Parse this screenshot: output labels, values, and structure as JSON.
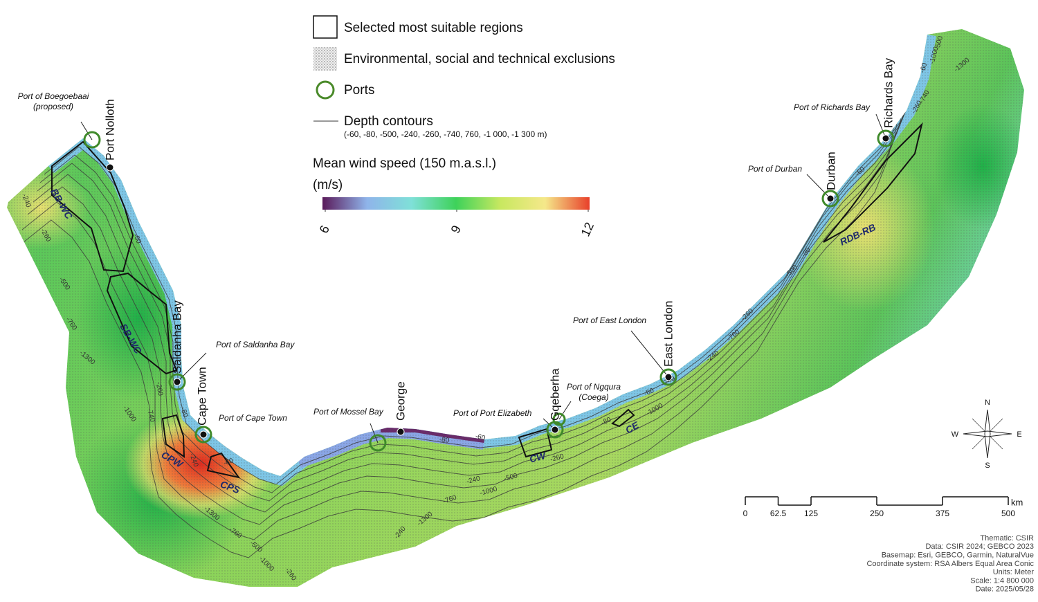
{
  "legend": {
    "regions": "Selected most suitable regions",
    "exclusions": "Environmental, social and technical exclusions",
    "ports": "Ports",
    "contours": "Depth contours",
    "contour_values": "(-60, -80, -500, -240, -260, -740, 760, -1 000, -1 300 m)",
    "wind_title": "Mean wind speed (150 m.a.s.l.)",
    "wind_unit": "(m/s)"
  },
  "colorbar": {
    "range": [
      6,
      12
    ],
    "ticks": [
      6,
      9,
      12
    ],
    "colors": [
      "#5a1a5a",
      "#8fb4ea",
      "#7fe0d8",
      "#3ed25a",
      "#c8e860",
      "#f5e88a",
      "#e8402a"
    ]
  },
  "ports": [
    [
      "Port of Boegoebaai",
      "(proposed)"
    ],
    [
      "Port of Saldanha Bay"
    ],
    [
      "Port of Cape Town"
    ],
    [
      "Port of Mossel Bay"
    ],
    [
      "Port of Port Elizabeth"
    ],
    [
      "Port of Ngqura",
      "(Coega)"
    ],
    [
      "Port of East London"
    ],
    [
      "Port of Durban"
    ],
    [
      "Port of Richards Bay"
    ]
  ],
  "towns": [
    "Port Nolloth",
    "Saldanha Bay",
    "Cape Town",
    "George",
    "Gqeberha",
    "East London",
    "Durban",
    "Richards Bay"
  ],
  "regions": [
    "BB-WC",
    "SB-WC",
    "CPW",
    "CPS",
    "CW",
    "CE",
    "RDB-RB"
  ],
  "contour_labels": [
    "-240",
    "-260",
    "-60",
    "-500",
    "-760",
    "-1300",
    "-260",
    "-1000",
    "-740",
    "-80",
    "-240",
    "-60",
    "-1300",
    "-760",
    "-500",
    "-1000",
    "-260",
    "-80",
    "-60",
    "-260",
    "-240",
    "-500",
    "-1000",
    "-760",
    "-1300",
    "-240",
    "-80",
    "-60",
    "-1000",
    "-740",
    "-240",
    "-760",
    "-260",
    "-500",
    "-80",
    "-60",
    "-260",
    "-740",
    "-60",
    "-1000",
    "-500",
    "-1300"
  ],
  "compass": [
    "N",
    "E",
    "S",
    "W"
  ],
  "scale_bar": {
    "ticks": [
      0,
      62.5,
      125,
      250,
      375,
      500
    ],
    "unit": "km"
  },
  "credits": [
    "Thematic: CSIR",
    "Data: CSIR 2024; GEBCO 2023",
    "Basemap: Esri, GEBCO, Garmin, NaturalVue",
    "Coordinate system: RSA Albers Equal Area Conic",
    "Units: Meter",
    "Scale: 1:4 800 000",
    "Date: 2025/05/28"
  ]
}
